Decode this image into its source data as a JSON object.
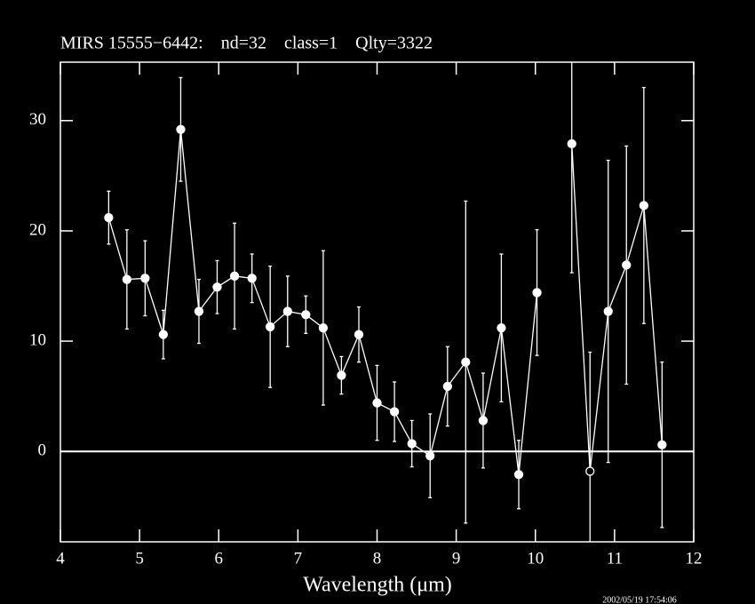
{
  "chart_data": {
    "type": "line",
    "title": "MIRS 15555−6442:    nd=32    class=1    Qlty=3322",
    "x_label": "Wavelength (μm)",
    "timestamp": "2002/05/19 17:54:06",
    "x": [
      4.61,
      4.84,
      5.07,
      5.3,
      5.52,
      5.75,
      5.98,
      6.2,
      6.42,
      6.65,
      6.87,
      7.1,
      7.32,
      7.55,
      7.77,
      8.0,
      8.22,
      8.44,
      8.67,
      8.89,
      9.12,
      9.34,
      9.57,
      9.79,
      10.02,
      10.24,
      10.46,
      10.69,
      10.92,
      11.15,
      11.37,
      11.6
    ],
    "series": [
      {
        "color": "#ffffff",
        "values": [
          21.2,
          15.6,
          15.7,
          10.6,
          29.2,
          12.7,
          14.9,
          15.9,
          15.7,
          11.3,
          12.7,
          12.4,
          11.2,
          6.9,
          10.6,
          4.4,
          3.6,
          0.7,
          -0.4,
          5.9,
          8.1,
          2.8,
          11.2,
          -2.1,
          14.4,
          null,
          27.9,
          -1.8,
          12.7,
          16.9,
          22.3,
          0.6
        ],
        "errors": [
          2.4,
          4.5,
          3.4,
          2.2,
          4.7,
          2.9,
          2.4,
          4.8,
          2.2,
          5.5,
          3.2,
          1.7,
          7.0,
          1.7,
          2.5,
          3.4,
          2.7,
          2.1,
          3.8,
          3.6,
          14.6,
          4.3,
          6.7,
          3.1,
          5.7,
          null,
          11.7,
          10.8,
          13.7,
          10.8,
          10.7,
          7.5
        ],
        "open_indices": [
          27
        ]
      }
    ],
    "xlim": [
      4,
      12
    ],
    "xticks": [
      4,
      5,
      6,
      7,
      8,
      9,
      10,
      11,
      12
    ],
    "ylim": [
      -8.2,
      35.3
    ],
    "yticks": [
      0,
      10,
      20,
      30
    ],
    "zero_line": true,
    "background": "#000000"
  }
}
